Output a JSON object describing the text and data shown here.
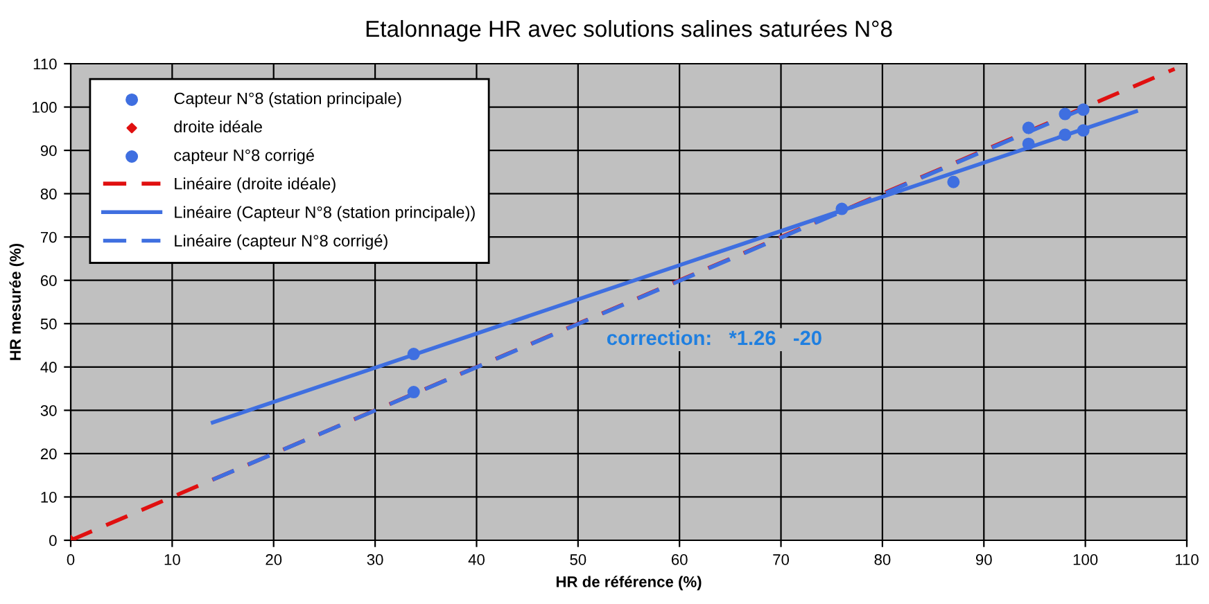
{
  "chart_data": {
    "type": "scatter",
    "title": "Etalonnage HR avec solutions salines saturées N°8",
    "xlabel": "HR de référence (%)",
    "ylabel": "HR mesurée (%)",
    "xlim": [
      0,
      110
    ],
    "ylim": [
      0,
      110
    ],
    "xticks": [
      0,
      10,
      20,
      30,
      40,
      50,
      60,
      70,
      80,
      90,
      100,
      110
    ],
    "yticks": [
      0,
      10,
      20,
      30,
      40,
      50,
      60,
      70,
      80,
      90,
      100,
      110
    ],
    "grid": true,
    "legend": "top left",
    "series": [
      {
        "name": "Capteur N°8 (station principale)",
        "color": "#3f6fe0",
        "marker": "circle",
        "x": [
          33.8,
          87,
          94.4,
          98,
          99.8
        ],
        "values": [
          43,
          82.7,
          91.5,
          93.6,
          94.6
        ]
      },
      {
        "name": "droite idéale",
        "color": "#e01010",
        "marker": "diamond",
        "x": [
          0
        ],
        "values": [
          0
        ]
      },
      {
        "name": "capteur N°8 corrigé",
        "color": "#3f6fe0",
        "marker": "circle",
        "x": [
          33.8,
          76,
          94.4,
          98,
          99.8
        ],
        "values": [
          34.2,
          76.5,
          95.2,
          98.4,
          99.4
        ]
      },
      {
        "name": "Linéaire (droite idéale)",
        "type": "line",
        "line_style": "dashed",
        "color": "#e01010",
        "x": [
          0,
          108.8
        ],
        "values": [
          0,
          108.8
        ]
      },
      {
        "name": "Linéaire (Capteur N°8 (station principale))",
        "type": "line",
        "line_style": "solid",
        "color": "#3f6fe0",
        "x": [
          14,
          105
        ],
        "values": [
          27.2,
          99
        ]
      },
      {
        "name": "Linéaire (capteur N°8 corrigé)",
        "type": "line",
        "line_style": "dashed",
        "color": "#3f6fe0",
        "x": [
          14,
          100.5
        ],
        "values": [
          14,
          100.3
        ]
      }
    ],
    "annotations": [
      "correction:   *1.26   -20"
    ]
  }
}
